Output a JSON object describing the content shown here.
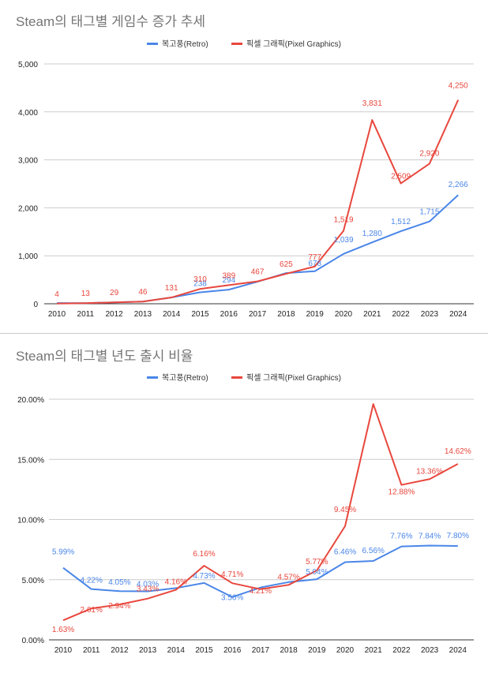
{
  "chart_data": [
    {
      "type": "line",
      "title": "Steam의 태그별 게임수 증가 추세",
      "xlabel": "",
      "ylabel": "",
      "categories": [
        "2010",
        "2011",
        "2012",
        "2013",
        "2014",
        "2015",
        "2016",
        "2017",
        "2018",
        "2019",
        "2020",
        "2021",
        "2022",
        "2023",
        "2024"
      ],
      "ylim": [
        0,
        5000
      ],
      "yticks": [
        "0",
        "1,000",
        "2,000",
        "3,000",
        "4,000",
        "5,000"
      ],
      "ytick_values": [
        0,
        1000,
        2000,
        3000,
        4000,
        5000
      ],
      "grid": true,
      "legend_position": "top-center",
      "series": [
        {
          "name": "복고풍(Retro)",
          "color": "#4a86e8",
          "values": [
            15,
            13,
            29,
            46,
            131,
            238,
            294,
            460,
            640,
            678,
            1039,
            1280,
            1512,
            1715,
            2266
          ],
          "labels": [
            "",
            "",
            "",
            "",
            "",
            "238",
            "294",
            "",
            "",
            "678",
            "1,039",
            "1,280",
            "1,512",
            "1,715",
            "2,266"
          ]
        },
        {
          "name": "픽셀 그래픽(Pixel Graphics)",
          "color": "#e8473d",
          "values": [
            4,
            13,
            29,
            46,
            131,
            310,
            389,
            467,
            625,
            777,
            1519,
            3831,
            2509,
            2920,
            4250
          ],
          "labels": [
            "4",
            "13",
            "29",
            "46",
            "131",
            "310",
            "389",
            "467",
            "625",
            "777",
            "1,519",
            "3,831",
            "2,509",
            "2,920",
            "4,250"
          ]
        }
      ]
    },
    {
      "type": "line",
      "title": "Steam의 태그별 년도 출시 비율",
      "xlabel": "",
      "ylabel": "",
      "categories": [
        "2010",
        "2011",
        "2012",
        "2013",
        "2014",
        "2015",
        "2016",
        "2017",
        "2018",
        "2019",
        "2020",
        "2021",
        "2022",
        "2023",
        "2024"
      ],
      "ylim": [
        0,
        20
      ],
      "yticks": [
        "0.00%",
        "5.00%",
        "10.00%",
        "15.00%",
        "20.00%"
      ],
      "ytick_values": [
        0,
        5,
        10,
        15,
        20
      ],
      "grid": true,
      "legend_position": "top-center",
      "series": [
        {
          "name": "복고풍(Retro)",
          "color": "#4a86e8",
          "values": [
            5.99,
            4.22,
            4.05,
            4.03,
            4.3,
            4.73,
            3.56,
            4.35,
            4.8,
            5.04,
            6.46,
            6.56,
            7.76,
            7.84,
            7.8
          ],
          "labels": [
            "5.99%",
            "4.22%",
            "4.05%",
            "4.03%",
            "",
            "4.73%",
            "3.56%",
            "",
            "",
            "5.04%",
            "6.46%",
            "6.56%",
            "7.76%",
            "7.84%",
            "7.80%"
          ]
        },
        {
          "name": "픽셀 그래픽(Pixel Graphics)",
          "color": "#e8473d",
          "values": [
            1.63,
            2.61,
            2.94,
            3.43,
            4.16,
            6.16,
            4.71,
            4.21,
            4.57,
            5.77,
            9.45,
            19.6,
            12.88,
            13.36,
            14.62
          ],
          "labels": [
            "1.63%",
            "2.61%",
            "2.94%",
            "3.43%",
            "4.16%",
            "6.16%",
            "4.71%",
            "4.21%",
            "4.57%",
            "5.77%",
            "9.45%",
            "",
            "12.88%",
            "13.36%",
            "14.62%"
          ]
        }
      ]
    }
  ]
}
